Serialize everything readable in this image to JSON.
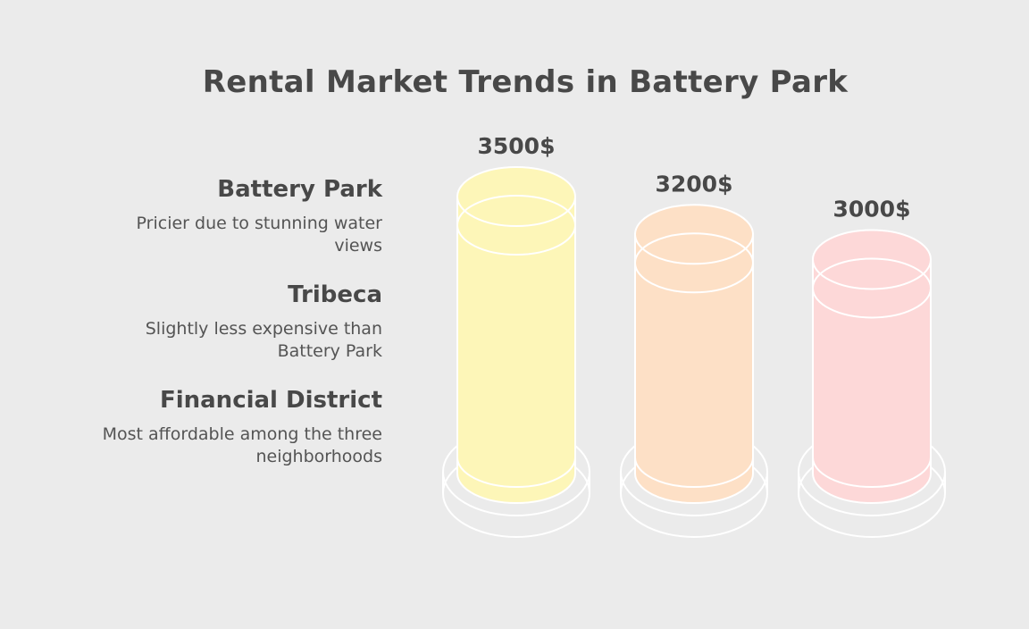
{
  "title": "Rental Market Trends in Battery Park",
  "neighborhoods": [
    {
      "name": "Battery Park",
      "description": "Pricier due to stunning water views"
    },
    {
      "name": "Tribeca",
      "description": "Slightly less expensive than Battery Park"
    },
    {
      "name": "Financial District",
      "description": "Most affordable among the three neighborhoods"
    }
  ],
  "chart_data": {
    "type": "bar",
    "title": "Rental Market Trends in Battery Park",
    "categories": [
      "Battery Park",
      "Tribeca",
      "Financial District"
    ],
    "values": [
      3500,
      3200,
      3000
    ],
    "value_labels": [
      "3500$",
      "3200$",
      "3000$"
    ],
    "unit": "$",
    "colors": [
      "#fdf6b8",
      "#fde0c6",
      "#fdd8d8"
    ],
    "ylim": [
      0,
      3500
    ]
  }
}
